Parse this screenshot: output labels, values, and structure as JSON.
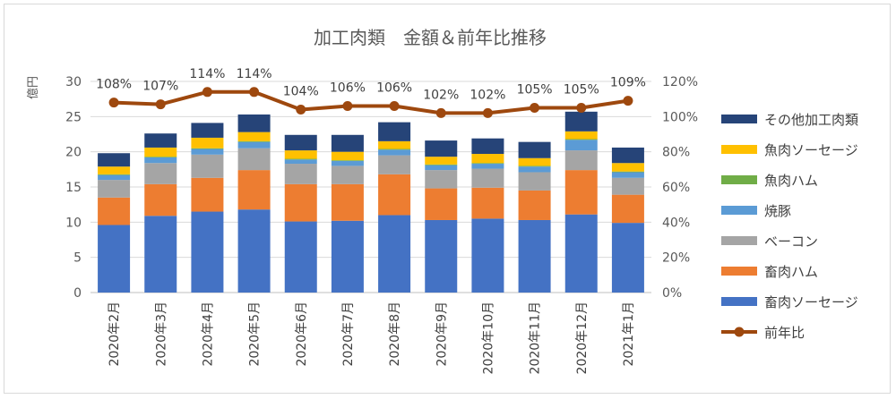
{
  "chart_data": {
    "type": "bar",
    "stacked": true,
    "title": "加工肉類　金額＆前年比推移",
    "ylabel": "億円",
    "ylim": [
      0,
      30
    ],
    "yticks": [
      "0",
      "5",
      "10",
      "15",
      "20",
      "25",
      "30"
    ],
    "y2lim": [
      0,
      120
    ],
    "y2ticks": [
      "0%",
      "20%",
      "40%",
      "60%",
      "80%",
      "100%",
      "120%"
    ],
    "grid": true,
    "legend_position": "right",
    "categories": [
      "2020年2月",
      "2020年3月",
      "2020年4月",
      "2020年5月",
      "2020年6月",
      "2020年7月",
      "2020年8月",
      "2020年9月",
      "2020年10月",
      "2020年11月",
      "2020年12月",
      "2021年1月"
    ],
    "series": [
      {
        "name": "畜肉ソーセージ",
        "color": "#4472c4",
        "values": [
          9.6,
          10.9,
          11.5,
          11.8,
          10.1,
          10.2,
          11.0,
          10.3,
          10.5,
          10.3,
          11.1,
          9.9
        ]
      },
      {
        "name": "畜肉ハム",
        "color": "#ed7d31",
        "values": [
          3.9,
          4.5,
          4.8,
          5.6,
          5.3,
          5.2,
          5.8,
          4.5,
          4.4,
          4.2,
          6.3,
          4.0
        ]
      },
      {
        "name": "ベーコン",
        "color": "#a5a5a5",
        "values": [
          2.5,
          3.0,
          3.3,
          3.1,
          2.9,
          2.6,
          2.7,
          2.6,
          2.7,
          2.6,
          2.8,
          2.4
        ]
      },
      {
        "name": "焼豚",
        "color": "#5b9bd5",
        "values": [
          0.7,
          0.8,
          0.8,
          0.9,
          0.6,
          0.7,
          0.8,
          0.7,
          0.7,
          0.8,
          1.5,
          0.8
        ]
      },
      {
        "name": "魚肉ハム",
        "color": "#70ad47",
        "values": [
          0.1,
          0.1,
          0.1,
          0.1,
          0.1,
          0.1,
          0.1,
          0.1,
          0.1,
          0.1,
          0.1,
          0.1
        ]
      },
      {
        "name": "魚肉ソーセージ",
        "color": "#ffc000",
        "values": [
          1.1,
          1.3,
          1.5,
          1.3,
          1.2,
          1.2,
          1.1,
          1.1,
          1.3,
          1.1,
          1.1,
          1.2
        ]
      },
      {
        "name": "その他加工肉類",
        "color": "#264478",
        "values": [
          1.9,
          2.0,
          2.1,
          2.5,
          2.2,
          2.4,
          2.7,
          2.3,
          2.2,
          2.3,
          2.8,
          2.2
        ]
      }
    ],
    "line": {
      "name": "前年比",
      "color": "#9e480e",
      "axis": "secondary",
      "values": [
        108,
        107,
        114,
        114,
        104,
        106,
        106,
        102,
        102,
        105,
        105,
        109
      ],
      "labels": [
        "108%",
        "107%",
        "114%",
        "114%",
        "104%",
        "106%",
        "106%",
        "102%",
        "102%",
        "105%",
        "105%",
        "109%"
      ]
    }
  }
}
